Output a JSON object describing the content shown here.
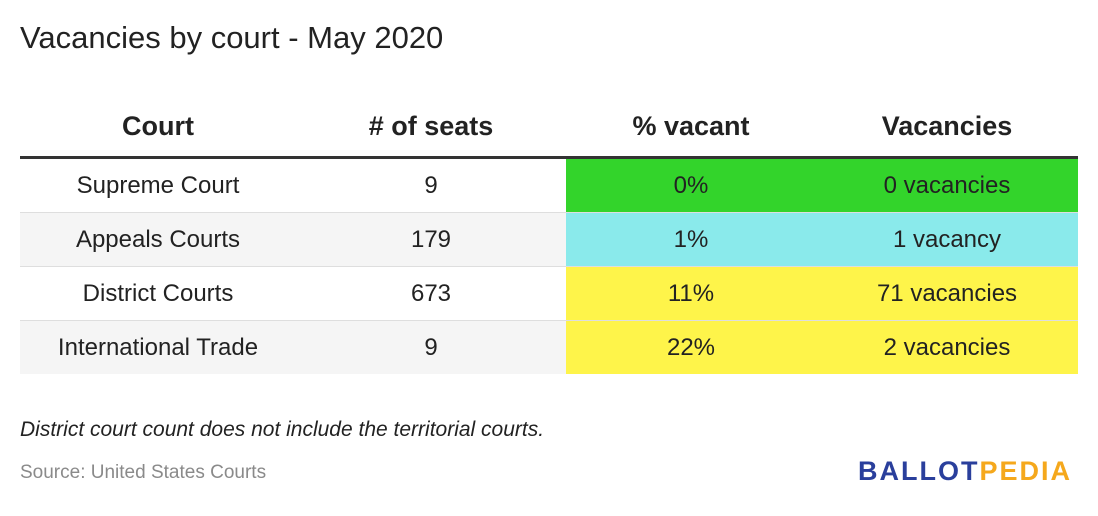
{
  "title": "Vacancies by court - May 2020",
  "chart_data": {
    "type": "table",
    "columns": [
      "Court",
      "# of seats",
      "% vacant",
      "Vacancies"
    ],
    "rows": [
      {
        "court": "Supreme Court",
        "seats": "9",
        "pct_vacant": "0%",
        "vacancies": "0 vacancies",
        "color": "#33d42b"
      },
      {
        "court": "Appeals Courts",
        "seats": "179",
        "pct_vacant": "1%",
        "vacancies": "1 vacancy",
        "color": "#8aeaeb"
      },
      {
        "court": "District Courts",
        "seats": "673",
        "pct_vacant": "11%",
        "vacancies": "71 vacancies",
        "color": "#fef44a"
      },
      {
        "court": "International Trade",
        "seats": "9",
        "pct_vacant": "22%",
        "vacancies": "2 vacancies",
        "color": "#fef44a"
      }
    ]
  },
  "note": "District court count does not include the territorial courts.",
  "source": "Source: United States Courts",
  "logo": {
    "part1": "BALLOT",
    "part2": "PEDIA",
    "part1_color": "#2a3f9c",
    "part2_color": "#f5a81c"
  }
}
